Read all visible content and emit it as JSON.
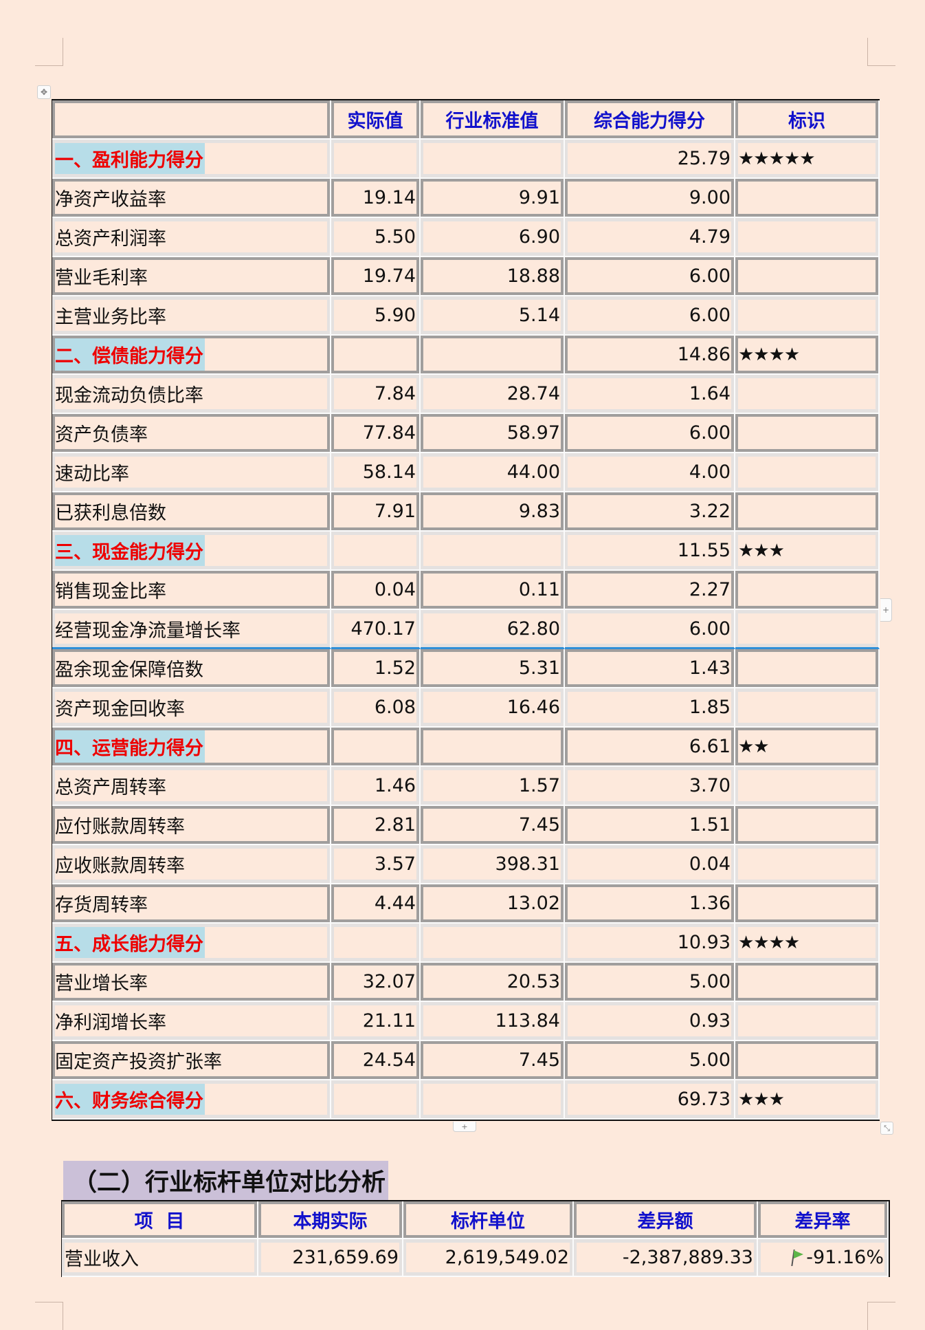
{
  "score_table": {
    "headers": [
      "",
      "实际值",
      "行业标准值",
      "综合能力得分",
      "标识"
    ],
    "rows": [
      {
        "type": "section",
        "label": "一、盈利能力得分",
        "actual": "",
        "standard": "",
        "score": "25.79",
        "mark": "★★★★★"
      },
      {
        "type": "item",
        "label": "净资产收益率",
        "actual": "19.14",
        "standard": "9.91",
        "score": "9.00",
        "mark": ""
      },
      {
        "type": "item",
        "label": "总资产利润率",
        "actual": "5.50",
        "standard": "6.90",
        "score": "4.79",
        "mark": ""
      },
      {
        "type": "item",
        "label": "营业毛利率",
        "actual": "19.74",
        "standard": "18.88",
        "score": "6.00",
        "mark": ""
      },
      {
        "type": "item",
        "label": "主营业务比率",
        "actual": "5.90",
        "standard": "5.14",
        "score": "6.00",
        "mark": ""
      },
      {
        "type": "section",
        "label": "二、偿债能力得分",
        "actual": "",
        "standard": "",
        "score": "14.86",
        "mark": "★★★★"
      },
      {
        "type": "item",
        "label": "现金流动负债比率",
        "actual": "7.84",
        "standard": "28.74",
        "score": "1.64",
        "mark": ""
      },
      {
        "type": "item",
        "label": "资产负债率",
        "actual": "77.84",
        "standard": "58.97",
        "score": "6.00",
        "mark": ""
      },
      {
        "type": "item",
        "label": "速动比率",
        "actual": "58.14",
        "standard": "44.00",
        "score": "4.00",
        "mark": ""
      },
      {
        "type": "item",
        "label": "已获利息倍数",
        "actual": "7.91",
        "standard": "9.83",
        "score": "3.22",
        "mark": ""
      },
      {
        "type": "section",
        "label": "三、现金能力得分",
        "actual": "",
        "standard": "",
        "score": "11.55",
        "mark": "★★★"
      },
      {
        "type": "item",
        "label": "销售现金比率",
        "actual": "0.04",
        "standard": "0.11",
        "score": "2.27",
        "mark": ""
      },
      {
        "type": "item",
        "label": "经营现金净流量增长率",
        "actual": "470.17",
        "standard": "62.80",
        "score": "6.00",
        "mark": ""
      },
      {
        "type": "item",
        "label": "盈余现金保障倍数",
        "actual": "1.52",
        "standard": "5.31",
        "score": "1.43",
        "mark": ""
      },
      {
        "type": "item",
        "label": "资产现金回收率",
        "actual": "6.08",
        "standard": "16.46",
        "score": "1.85",
        "mark": ""
      },
      {
        "type": "section",
        "label": "四、运营能力得分",
        "actual": "",
        "standard": "",
        "score": "6.61",
        "mark": "★★"
      },
      {
        "type": "item",
        "label": "总资产周转率",
        "actual": "1.46",
        "standard": "1.57",
        "score": "3.70",
        "mark": ""
      },
      {
        "type": "item",
        "label": "应付账款周转率",
        "actual": "2.81",
        "standard": "7.45",
        "score": "1.51",
        "mark": ""
      },
      {
        "type": "item",
        "label": "应收账款周转率",
        "actual": "3.57",
        "standard": "398.31",
        "score": "0.04",
        "mark": ""
      },
      {
        "type": "item",
        "label": "存货周转率",
        "actual": "4.44",
        "standard": "13.02",
        "score": "1.36",
        "mark": ""
      },
      {
        "type": "section",
        "label": "五、成长能力得分",
        "actual": "",
        "standard": "",
        "score": "10.93",
        "mark": "★★★★"
      },
      {
        "type": "item",
        "label": "营业增长率",
        "actual": "32.07",
        "standard": "20.53",
        "score": "5.00",
        "mark": ""
      },
      {
        "type": "item",
        "label": "净利润增长率",
        "actual": "21.11",
        "standard": "113.84",
        "score": "0.93",
        "mark": ""
      },
      {
        "type": "item",
        "label": "固定资产投资扩张率",
        "actual": "24.54",
        "standard": "7.45",
        "score": "5.00",
        "mark": ""
      },
      {
        "type": "section",
        "label": "六、财务综合得分",
        "actual": "",
        "standard": "",
        "score": "69.73",
        "mark": "★★★"
      }
    ]
  },
  "benchmark": {
    "title": "（二）行业标杆单位对比分析",
    "headers": [
      "项  目",
      "本期实际",
      "标杆单位",
      "差异额",
      "差异率"
    ],
    "rows": [
      {
        "item": "营业收入",
        "actual": "231,659.69",
        "benchmark": "2,619,549.02",
        "diff": "-2,387,889.33",
        "rate": "-91.16%",
        "rate_icon": "green-flag-icon"
      }
    ]
  },
  "handles": {
    "move": "✥",
    "add_column": "+",
    "add_row": "+",
    "resize": "⤡"
  },
  "colors": {
    "page_bg": "#fde9dc",
    "header_text": "#1111cc",
    "section_text": "#ee0000",
    "section_highlight": "#b7dde8",
    "subtitle_highlight": "#cbc0d8",
    "selection_line": "#2f8fd8"
  }
}
